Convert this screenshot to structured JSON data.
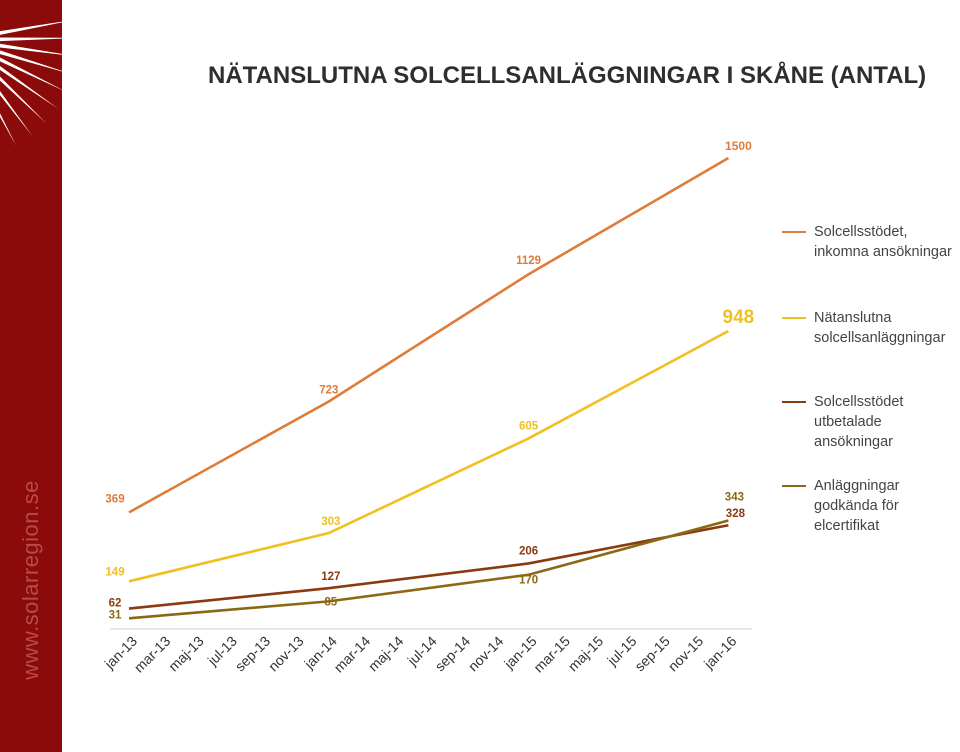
{
  "branding": {
    "site": "www.solarregion.se",
    "sun_color": "#ffffff"
  },
  "chart_data": {
    "type": "line",
    "title": "NÄTANSLUTNA SOLCELLSANLÄGGNINGAR I SKÅNE (ANTAL)",
    "x_categories": [
      "jan-13",
      "mar-13",
      "maj-13",
      "jul-13",
      "sep-13",
      "nov-13",
      "jan-14",
      "mar-14",
      "maj-14",
      "jul-14",
      "sep-14",
      "nov-14",
      "jan-15",
      "mar-15",
      "maj-15",
      "jul-15",
      "sep-15",
      "nov-15",
      "jan-16"
    ],
    "series": [
      {
        "name": "Solcellsstödet, inkomna ansökningar",
        "color": "#e07b39",
        "points": [
          {
            "x": "jan-13",
            "y": 369,
            "label": "369"
          },
          {
            "x": "jan-14",
            "y": 723,
            "label": "723"
          },
          {
            "x": "jan-15",
            "y": 1129,
            "label": "1129"
          },
          {
            "x": "jan-16",
            "y": 1500,
            "label": "1500"
          }
        ]
      },
      {
        "name": "Nätanslutna solcellsanläggningar",
        "color": "#f0c020",
        "points": [
          {
            "x": "jan-13",
            "y": 149,
            "label": "149"
          },
          {
            "x": "jan-14",
            "y": 303,
            "label": "303"
          },
          {
            "x": "jan-15",
            "y": 605,
            "label": "605"
          },
          {
            "x": "jan-16",
            "y": 948,
            "label": "948"
          }
        ]
      },
      {
        "name": "Solcellsstödet utbetalade ansökningar",
        "color": "#8b3a10",
        "points": [
          {
            "x": "jan-13",
            "y": 62,
            "label": "62"
          },
          {
            "x": "jan-14",
            "y": 127,
            "label": "127"
          },
          {
            "x": "jan-15",
            "y": 206,
            "label": "206"
          },
          {
            "x": "jan-16",
            "y": 328,
            "label": "328"
          }
        ]
      },
      {
        "name": "Anläggningar godkända för elcertifikat",
        "color": "#8b6914",
        "points": [
          {
            "x": "jan-13",
            "y": 31,
            "label": "31"
          },
          {
            "x": "jan-14",
            "y": 85,
            "label": "85"
          },
          {
            "x": "jan-15",
            "y": 170,
            "label": "170"
          },
          {
            "x": "jan-16",
            "y": 343,
            "label": "343"
          }
        ]
      }
    ],
    "ylim": [
      0,
      1650
    ],
    "grid": false,
    "legend_position": "right"
  }
}
